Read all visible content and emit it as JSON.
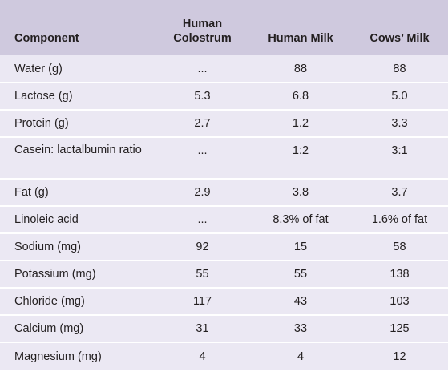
{
  "header": {
    "component": "Component",
    "colostrum": "Human Colostrum",
    "human_milk": "Human Milk",
    "cows_milk": "Cows’ Milk"
  },
  "rows": [
    {
      "component": "Water (g)",
      "colostrum": "...",
      "human_milk": "88",
      "cows_milk": "88"
    },
    {
      "component": "Lactose (g)",
      "colostrum": "5.3",
      "human_milk": "6.8",
      "cows_milk": "5.0"
    },
    {
      "component": "Protein (g)",
      "colostrum": "2.7",
      "human_milk": "1.2",
      "cows_milk": "3.3"
    },
    {
      "component": "Casein: lactalbumin ratio",
      "colostrum": "...",
      "human_milk": "1:2",
      "cows_milk": "3:1"
    },
    {
      "component": "Fat (g)",
      "colostrum": "2.9",
      "human_milk": "3.8",
      "cows_milk": "3.7"
    },
    {
      "component": "Linoleic acid",
      "colostrum": "...",
      "human_milk": "8.3% of fat",
      "cows_milk": "1.6% of fat"
    },
    {
      "component": "Sodium (mg)",
      "colostrum": "92",
      "human_milk": "15",
      "cows_milk": "58"
    },
    {
      "component": "Potassium (mg)",
      "colostrum": "55",
      "human_milk": "55",
      "cows_milk": "138"
    },
    {
      "component": "Chloride (mg)",
      "colostrum": "117",
      "human_milk": "43",
      "cows_milk": "103"
    },
    {
      "component": "Calcium (mg)",
      "colostrum": "31",
      "human_milk": "33",
      "cows_milk": "125"
    },
    {
      "component": "Magnesium (mg)",
      "colostrum": "4",
      "human_milk": "4",
      "cows_milk": "12"
    }
  ]
}
